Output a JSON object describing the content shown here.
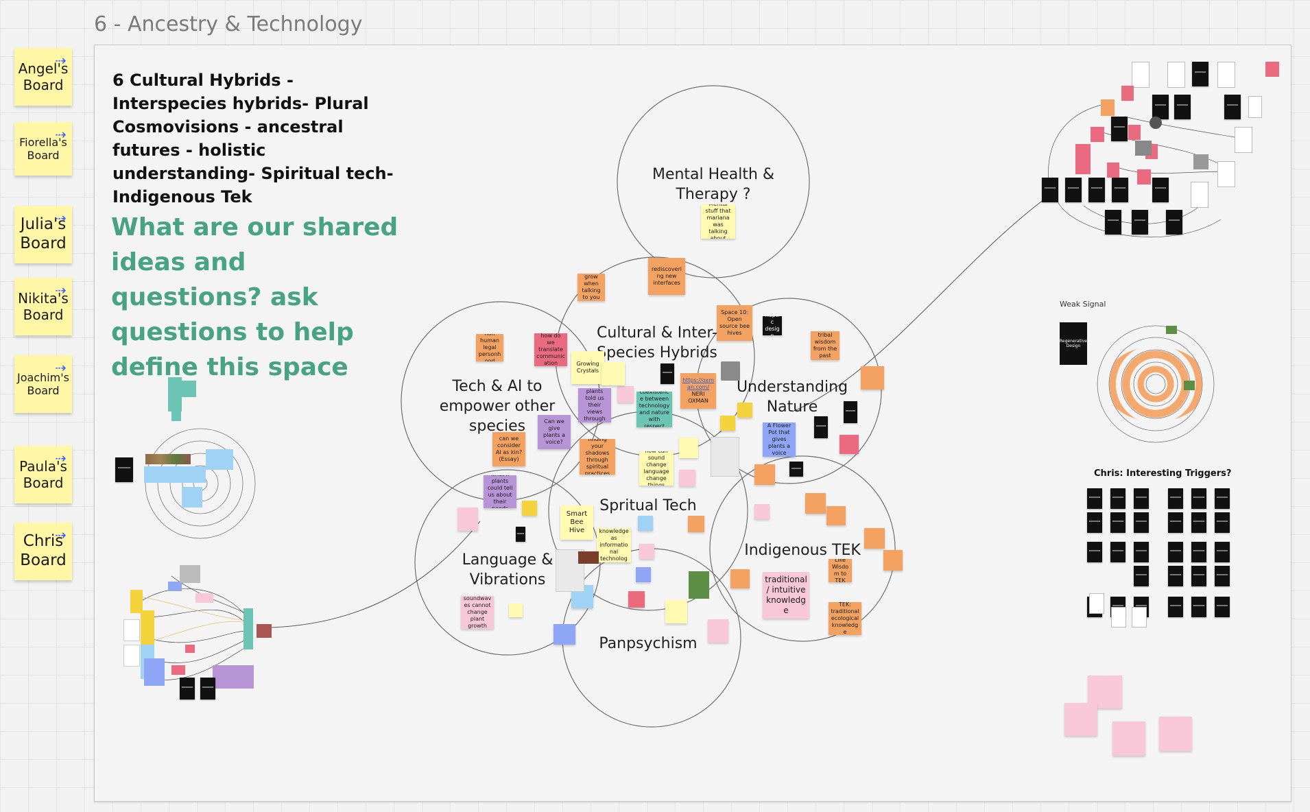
{
  "frame": {
    "title": "6 - Ancestry & Technology"
  },
  "side_boards": [
    {
      "name": "Angel's",
      "suffix": "Board"
    },
    {
      "name": "Fiorella's",
      "suffix": "Board"
    },
    {
      "name": "Julia's",
      "suffix": "Board"
    },
    {
      "name": "Nikita's",
      "suffix": "Board"
    },
    {
      "name": "Joachim's",
      "suffix": "Board"
    },
    {
      "name": "Paula's",
      "suffix": "Board"
    },
    {
      "name": "Chris",
      "suffix": "Board"
    }
  ],
  "heading": "6 Cultural Hybrids - Interspecies hybrids- Plural Cosmovisions - ancestral futures - holistic understanding- Spiritual tech- Indigenous Tek",
  "question": "What are our shared ideas and questions? ask questions to help define this space",
  "venn": {
    "mental_health": "Mental Health & Therapy ?",
    "cultural": "Cultural & Inter-Species Hybrids",
    "tech_ai": "Tech & AI to empower other species",
    "nature": "Understanding Nature",
    "spiritual": "Spritual Tech",
    "language": "Language & Vibrations",
    "indigenous": "Indigenous TEK",
    "panpsychism": "Panpsychism"
  },
  "stickies": {
    "mental_stuff": "Mental stuff that mariana was talking about",
    "rediscovering": "rediscovering new interfaces",
    "plants_grow": "seeing a plant grow when talking to you like a plant",
    "space10": "Space 10: Open source bee hives",
    "haptic": "haptic design",
    "non_human_legal": "non human legal personhood",
    "communication": "how do we translate communication",
    "growing_crystals": "Growing Crystals",
    "what_plants_say": "what to we hear if plants told us their views through the interface",
    "coexistence": "coexistence between technology and nature with respect",
    "link": "https://oxman.com/",
    "neri": "NERI OXMAN",
    "plants_voice": "Can we give plants a voice?",
    "consider_ai": "can we consider AI as kin? (Essay)",
    "finding_shared": "finding your shadows through spiritual practices",
    "how_can": "how can sound change language change things",
    "flower_pot": "A Flower Pot that gives plants a voice",
    "smart_bee": "Smart Bee Hive",
    "intuitive": "intuitive knowledge as informational technology",
    "what_if": "what if plants could tell us about their needs",
    "soundwaves": "soundwaves cannot change plant growth",
    "traditional": "traditional / intuitive knowledge",
    "tek": "TEK: traditional ecological knowledge",
    "tribal": "tribal wisdom from the past",
    "living": "Like Wisdom to TEK"
  },
  "right": {
    "weak_signal": "Weak Signal",
    "triggers_title": "Chris: Interesting Triggers?",
    "regenerative": "Regenerative Design"
  },
  "colors": {
    "accent_green": "#47a383",
    "sticky_yellow": "#fff7a6",
    "board_link": "#4262ff"
  },
  "icons": {
    "board_link": "arrow-link-icon"
  }
}
